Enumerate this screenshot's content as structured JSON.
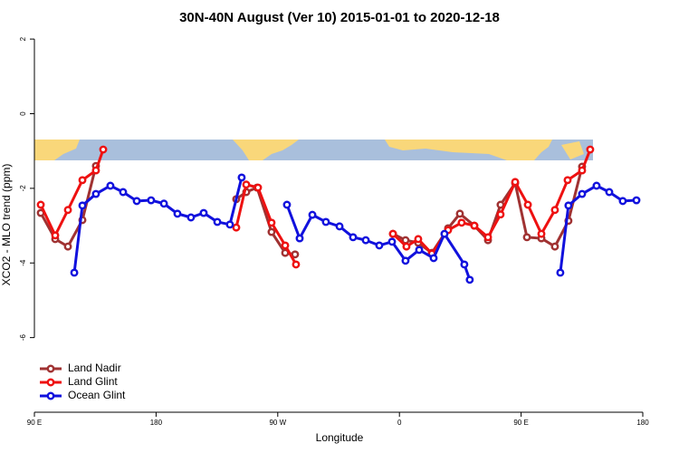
{
  "chart_data": {
    "type": "line",
    "title": "30N-40N August (Ver 10)   2015-01-01 to 2020-12-18",
    "x_label": "Longitude",
    "y_label": "XCO2 - MLO trend (ppm)",
    "xlim": [
      90,
      540
    ],
    "ylim": [
      -8,
      2.1
    ],
    "xticks": [
      {
        "value": 90,
        "label": "90 E"
      },
      180,
      {
        "value": 270,
        "label": "90 W"
      },
      {
        "value": 360,
        "label": "0"
      },
      {
        "value": 450,
        "label": "90 E"
      },
      {
        "value": 540,
        "label": "180"
      }
    ],
    "yticks": [
      2,
      0,
      -2,
      -4,
      -6
    ],
    "legend": "bottom-left",
    "series": [
      {
        "name": "Land Nadir",
        "color": "#a03232",
        "x": [
          94.7,
          105.4,
          114.8,
          125.5,
          135.5,
          null,
          239.3,
          246.7,
          254.7,
          265.4,
          275.5,
          282.8,
          null,
          355.2,
          364.5,
          373.9,
          384,
          396,
          404.7,
          415.4,
          425.5,
          434.8,
          445.6,
          454.3,
          465,
          475,
          485,
          495.1
        ],
        "values": [
          -2.66,
          -3.36,
          -3.56,
          -2.85,
          -1.4,
          null,
          -2.29,
          -2.1,
          -1.98,
          -3.17,
          -3.73,
          -3.77,
          null,
          -3.22,
          -3.39,
          -3.46,
          -3.73,
          -3.07,
          -2.68,
          -3.0,
          -3.39,
          -2.44,
          -1.86,
          -3.31,
          -3.34,
          -3.56,
          -2.87,
          -1.42
        ]
      },
      {
        "name": "Land Glint",
        "color": "#ee1111",
        "x": [
          94.7,
          105.4,
          114.8,
          125.5,
          135.5,
          140.9,
          null,
          239.3,
          246.7,
          255.4,
          265.4,
          275.5,
          283.5,
          null,
          355.2,
          365.2,
          373.9,
          384,
          396,
          406,
          415.4,
          425.5,
          434.8,
          445.6,
          455,
          465,
          475,
          484.4,
          495.1,
          501.1
        ],
        "values": [
          -2.44,
          -3.26,
          -2.58,
          -1.78,
          -1.52,
          -0.96,
          null,
          -3.05,
          -1.9,
          -1.98,
          -2.92,
          -3.53,
          -4.04,
          null,
          -3.22,
          -3.56,
          -3.36,
          -3.75,
          -3.12,
          -2.92,
          -3.0,
          -3.31,
          -2.7,
          -1.83,
          -2.44,
          -3.22,
          -2.58,
          -1.78,
          -1.52,
          -0.96
        ]
      },
      {
        "name": "Ocean Glint",
        "color": "#1111dd",
        "x": [
          119.5,
          125.5,
          135.5,
          146.2,
          155.6,
          165.7,
          176.3,
          185.8,
          195.8,
          205.8,
          215.2,
          225.3,
          234.6,
          243.3,
          null,
          276.8,
          286.2,
          295.6,
          305.6,
          315.7,
          325.7,
          335.1,
          345.1,
          354.5,
          364.5,
          374.6,
          385.3,
          393.3,
          408,
          412,
          null,
          479,
          485,
          495.1,
          505.8,
          515.2,
          525.2,
          535.3
        ],
        "values": [
          -4.26,
          -2.46,
          -2.15,
          -1.93,
          -2.1,
          -2.34,
          -2.32,
          -2.41,
          -2.68,
          -2.78,
          -2.66,
          -2.9,
          -2.97,
          -1.71,
          null,
          -2.44,
          -3.34,
          -2.71,
          -2.9,
          -3.02,
          -3.31,
          -3.39,
          -3.53,
          -3.43,
          -3.94,
          -3.65,
          -3.87,
          -3.22,
          -4.04,
          -4.45,
          null,
          -4.26,
          -2.46,
          -2.15,
          -1.93,
          -2.1,
          -2.34,
          -2.32
        ]
      }
    ]
  }
}
